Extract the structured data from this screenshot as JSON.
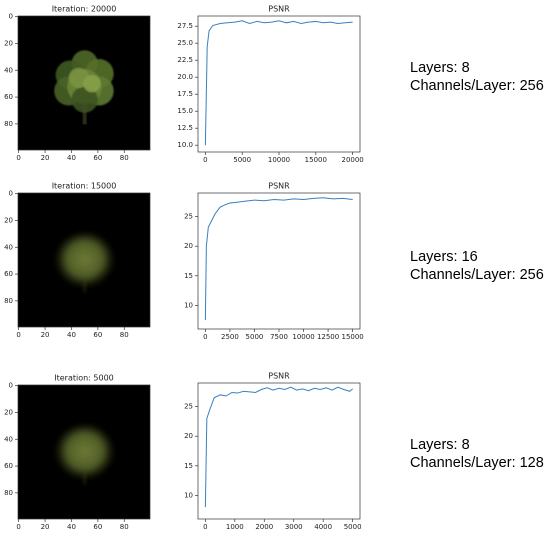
{
  "chart_data": [
    {
      "type": "image",
      "title": "Iteration: 20000",
      "xlim": [
        -0.5,
        99.5
      ],
      "ylim": [
        99.5,
        -0.5
      ],
      "xticks": [
        0,
        20,
        40,
        60,
        80
      ],
      "yticks": [
        0,
        20,
        40,
        60,
        80
      ]
    },
    {
      "type": "line",
      "title": "PSNR",
      "color": "#3a7fc1",
      "x": [
        0,
        250,
        500,
        1000,
        2000,
        3000,
        4000,
        5000,
        6000,
        7000,
        8000,
        9000,
        10000,
        11000,
        12000,
        13000,
        14000,
        15000,
        16000,
        17000,
        18000,
        19000,
        20000
      ],
      "values": [
        10,
        24.5,
        26.8,
        27.6,
        27.9,
        28.0,
        28.1,
        28.3,
        27.9,
        28.2,
        28.0,
        28.1,
        28.3,
        28.0,
        28.2,
        27.9,
        28.1,
        28.2,
        28.0,
        28.1,
        27.9,
        28.0,
        28.1
      ],
      "xlim": [
        -1000,
        21000
      ],
      "ylim": [
        9,
        29
      ],
      "xticks": [
        0,
        5000,
        10000,
        15000,
        20000
      ],
      "yticks": [
        {
          "value": 10,
          "label": "10.0"
        },
        {
          "value": 12.5,
          "label": "12.5"
        },
        {
          "value": 15,
          "label": "15.0"
        },
        {
          "value": 17.5,
          "label": "17.5"
        },
        {
          "value": 20,
          "label": "20.0"
        },
        {
          "value": 22.5,
          "label": "22.5"
        },
        {
          "value": 25,
          "label": "25.0"
        },
        {
          "value": 27.5,
          "label": "27.5"
        }
      ],
      "annotations": [
        "Layers: 8",
        "Channels/Layer: 256"
      ]
    },
    {
      "type": "image",
      "title": "Iteration: 15000",
      "xlim": [
        -0.5,
        99.5
      ],
      "ylim": [
        99.5,
        -0.5
      ],
      "xticks": [
        0,
        20,
        40,
        60,
        80
      ],
      "yticks": [
        0,
        20,
        40,
        60,
        80
      ]
    },
    {
      "type": "line",
      "title": "PSNR",
      "color": "#3a7fc1",
      "x": [
        0,
        100,
        300,
        600,
        1000,
        1500,
        2000,
        2500,
        3000,
        4000,
        5000,
        6000,
        7000,
        8000,
        9000,
        10000,
        11000,
        12000,
        13000,
        14000,
        15000
      ],
      "values": [
        7.5,
        20,
        23.2,
        24.2,
        25.5,
        26.6,
        27.0,
        27.3,
        27.4,
        27.6,
        27.8,
        27.7,
        27.9,
        27.8,
        28.0,
        27.9,
        28.1,
        28.2,
        28.0,
        28.1,
        27.9
      ],
      "xlim": [
        -750,
        15750
      ],
      "ylim": [
        6,
        29
      ],
      "xticks": [
        0,
        2500,
        5000,
        7500,
        10000,
        12500,
        15000
      ],
      "yticks": [
        10,
        15,
        20,
        25
      ],
      "annotations": [
        "Layers: 16",
        "Channels/Layer: 256"
      ]
    },
    {
      "type": "image",
      "title": "Iteration: 5000",
      "xlim": [
        -0.5,
        99.5
      ],
      "ylim": [
        99.5,
        -0.5
      ],
      "xticks": [
        0,
        20,
        40,
        60,
        80
      ],
      "yticks": [
        0,
        20,
        40,
        60,
        80
      ]
    },
    {
      "type": "line",
      "title": "PSNR",
      "color": "#3a7fc1",
      "x": [
        0,
        50,
        150,
        300,
        500,
        700,
        900,
        1100,
        1300,
        1500,
        1700,
        1900,
        2100,
        2300,
        2500,
        2700,
        2900,
        3100,
        3300,
        3500,
        3700,
        3900,
        4100,
        4300,
        4500,
        4700,
        4900,
        5000
      ],
      "values": [
        8,
        23,
        24.5,
        26.5,
        27.0,
        26.8,
        27.4,
        27.3,
        27.6,
        27.5,
        27.4,
        27.9,
        28.2,
        27.8,
        28.1,
        27.9,
        28.3,
        27.8,
        28.0,
        27.7,
        28.1,
        27.9,
        28.2,
        27.8,
        28.3,
        27.9,
        27.6,
        28.0
      ],
      "xlim": [
        -250,
        5250
      ],
      "ylim": [
        6,
        29
      ],
      "xticks": [
        0,
        1000,
        2000,
        3000,
        4000,
        5000
      ],
      "yticks": [
        10,
        15,
        20,
        25
      ],
      "annotations": [
        "Layers: 8",
        "Channels/Layer: 128"
      ]
    }
  ]
}
